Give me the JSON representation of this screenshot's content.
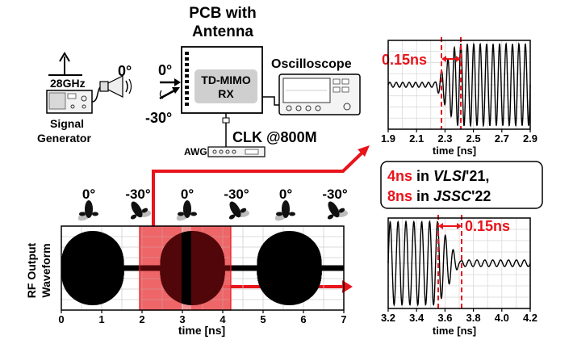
{
  "setup": {
    "freq_label": "28GHz",
    "angle_tx": "0°",
    "signal_gen_label_1": "Signal",
    "signal_gen_label_2": "Generator",
    "pcb_label_1": "PCB with",
    "pcb_label_2": "Antenna",
    "angle_rx_0": "0°",
    "angle_rx_30": "-30°",
    "chip_label_1": "TD-MIMO",
    "chip_label_2": "RX",
    "oscilloscope_label": "Oscilloscope",
    "clk_label": "CLK @800M",
    "awg_label": "AWG"
  },
  "comparison": {
    "line1_value": "4ns",
    "line1_mid": " in ",
    "line1_venue": "VLSI",
    "line1_year": "'21,",
    "line2_value": "8ns",
    "line2_mid": " in ",
    "line2_venue": "JSSC",
    "line2_year": "'22"
  },
  "main_plot": {
    "ylabel_1": "RF Output",
    "ylabel_2": "Waveform",
    "xlabel": "time [ns]",
    "x_ticks": [
      "0",
      "1",
      "2",
      "3",
      "4",
      "5",
      "6",
      "7"
    ],
    "beam_angles": [
      "0°",
      "-30°",
      "0°",
      "-30°",
      "0°",
      "-30°"
    ]
  },
  "zoom_top": {
    "annotation": "0.15ns",
    "xlabel": "time [ns]",
    "x_ticks": [
      "1.9",
      "2.1",
      "2.3",
      "2.5",
      "2.7",
      "2.9"
    ]
  },
  "zoom_bottom": {
    "annotation": "0.15ns",
    "xlabel": "time [ns]",
    "x_ticks": [
      "3.2",
      "3.4",
      "3.6",
      "3.8",
      "4.0",
      "4.2"
    ]
  },
  "colors": {
    "accent": "#e8141b",
    "highlight": "#f08080"
  }
}
